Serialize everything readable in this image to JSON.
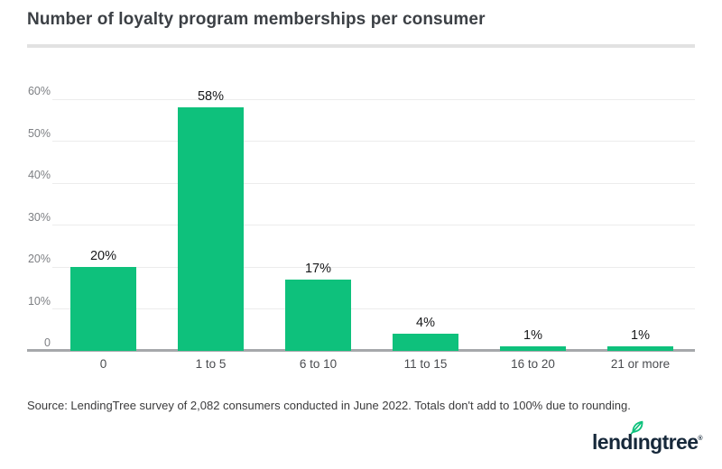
{
  "title": "Number of loyalty program memberships per consumer",
  "source": "Source: LendingTree survey of 2,082 consumers conducted in June 2022. Totals don't add to 100% due to rounding.",
  "logo": {
    "part1": "lend",
    "dotless_i": "ı",
    "part2": "ngtree",
    "registered": "®",
    "leaf_icon": "leaf-icon"
  },
  "colors": {
    "bar_green": "#0ec17c",
    "leaf_green": "#0ec17c",
    "logo_navy": "#16283a",
    "gridline": "#ececec",
    "axis_line": "#a6a8ab",
    "separator": "#e2e2e2",
    "title_text": "#3c4045",
    "y_label_text": "#7d7f83",
    "x_label_text": "#4a4c50",
    "data_label_text": "#17181a"
  },
  "chart_data": {
    "type": "bar",
    "title": "Number of loyalty program memberships per consumer",
    "categories": [
      "0",
      "1 to 5",
      "6 to 10",
      "11 to 15",
      "16 to 20",
      "21 or more"
    ],
    "values": [
      20,
      58,
      17,
      4,
      1,
      1
    ],
    "data_labels": [
      "20%",
      "58%",
      "17%",
      "4%",
      "1%",
      "1%"
    ],
    "xlabel": "",
    "ylabel": "",
    "y_ticks": [
      "60%",
      "50%",
      "40%",
      "30%",
      "20%",
      "10%",
      "0"
    ],
    "y_tick_values": [
      60,
      50,
      40,
      30,
      20,
      10,
      0
    ],
    "ylim": [
      0,
      60
    ],
    "grid": "horizontal gridlines on",
    "legend": "none",
    "bar_color": "#0ec17c"
  }
}
